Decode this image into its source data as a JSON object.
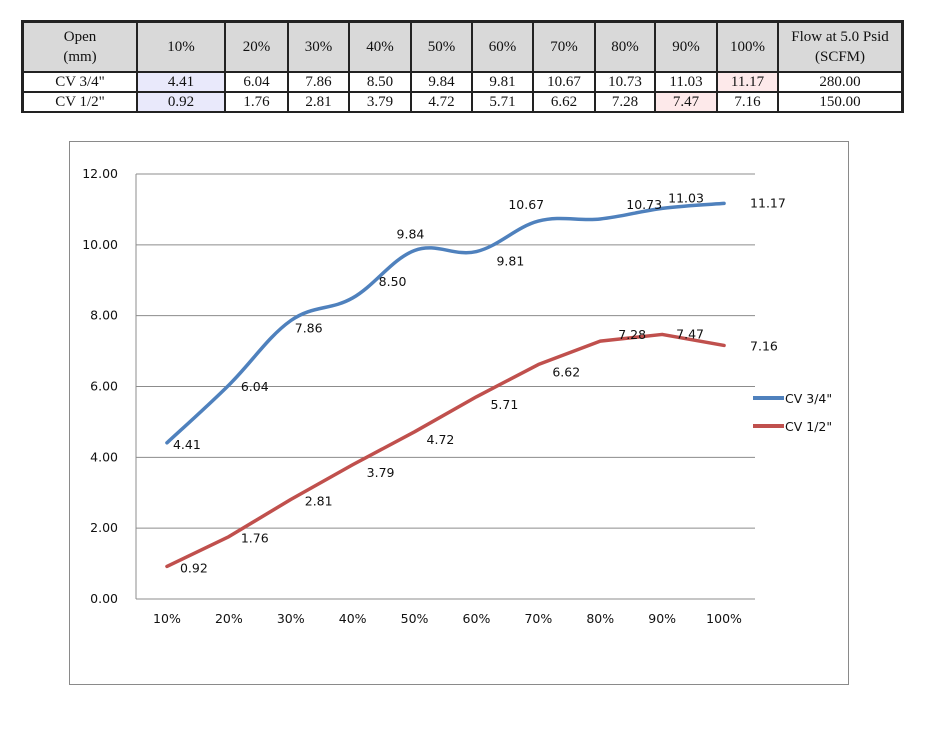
{
  "table": {
    "header": [
      "Open\n(mm)",
      "10%",
      "20%",
      "30%",
      "40%",
      "50%",
      "60%",
      "70%",
      "80%",
      "90%",
      "100%",
      "Flow at 5.0 Psid\n(SCFM)"
    ],
    "header_lines": {
      "first": [
        "Open",
        "(mm)"
      ],
      "last": [
        "Flow at 5.0 Psid",
        "(SCFM)"
      ]
    },
    "rows": [
      {
        "label": "CV 3/4\"",
        "cells": [
          "4.41",
          "6.04",
          "7.86",
          "8.50",
          "9.84",
          "9.81",
          "10.67",
          "10.73",
          "11.03",
          "11.17",
          "280.00"
        ]
      },
      {
        "label": "CV 1/2\"",
        "cells": [
          "0.92",
          "1.76",
          "2.81",
          "3.79",
          "4.72",
          "5.71",
          "6.62",
          "7.28",
          "7.47",
          "7.16",
          "150.00"
        ]
      }
    ],
    "colors": {
      "header_bg": "#d9d9d9",
      "highlight_min": "#e9e9fb",
      "highlight_max": "#fde9ea"
    }
  },
  "chart_data": {
    "type": "line",
    "title": "",
    "xlabel": "",
    "ylabel": "",
    "categories": [
      "10%",
      "20%",
      "30%",
      "40%",
      "50%",
      "60%",
      "70%",
      "80%",
      "90%",
      "100%"
    ],
    "series": [
      {
        "name": "CV 3/4\"",
        "color": "#4f81bd",
        "smooth": true,
        "values": [
          4.41,
          6.04,
          7.86,
          8.5,
          9.84,
          9.81,
          10.67,
          10.73,
          11.03,
          11.17
        ],
        "labels": [
          "4.41",
          "6.04",
          "7.86",
          "8.50",
          "9.84",
          "9.81",
          "10.67",
          "10.73",
          "11.03",
          "11.17"
        ]
      },
      {
        "name": "CV 1/2\"",
        "color": "#c0504d",
        "smooth": false,
        "values": [
          0.92,
          1.76,
          2.81,
          3.79,
          4.72,
          5.71,
          6.62,
          7.28,
          7.47,
          7.16
        ],
        "labels": [
          "0.92",
          "1.76",
          "2.81",
          "3.79",
          "4.72",
          "5.71",
          "6.62",
          "7.28",
          "7.47",
          "7.16"
        ]
      }
    ],
    "ylim": [
      0,
      12
    ],
    "yticks": [
      "0.00",
      "2.00",
      "4.00",
      "6.00",
      "8.00",
      "10.00",
      "12.00"
    ],
    "ytick_values": [
      0,
      2,
      4,
      6,
      8,
      10,
      12
    ],
    "grid": true,
    "legend": "right"
  }
}
